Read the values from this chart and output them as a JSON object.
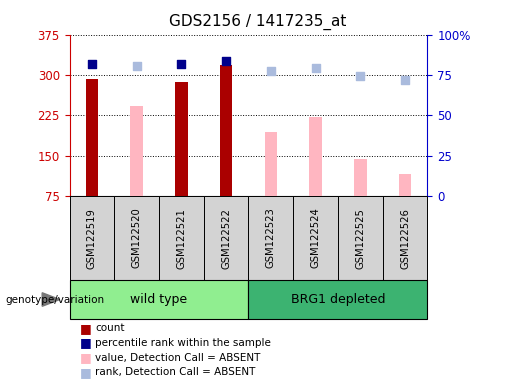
{
  "title": "GDS2156 / 1417235_at",
  "samples": [
    "GSM122519",
    "GSM122520",
    "GSM122521",
    "GSM122522",
    "GSM122523",
    "GSM122524",
    "GSM122525",
    "GSM122526"
  ],
  "count_values": [
    292,
    null,
    287,
    318,
    null,
    null,
    null,
    null
  ],
  "value_absent": [
    null,
    243,
    null,
    null,
    193,
    222,
    143,
    115
  ],
  "rank_present": [
    320,
    null,
    320,
    325,
    null,
    null,
    null,
    null
  ],
  "rank_absent": [
    null,
    316,
    null,
    null,
    308,
    312,
    298,
    291
  ],
  "ylim_left": [
    75,
    375
  ],
  "ylim_right": [
    0,
    100
  ],
  "yticks_left": [
    75,
    150,
    225,
    300,
    375
  ],
  "yticks_right": [
    0,
    25,
    50,
    75,
    100
  ],
  "ylabel_left_color": "#CC0000",
  "ylabel_right_color": "#0000CC",
  "count_color": "#AA0000",
  "rank_present_color": "#00008B",
  "value_absent_color": "#FFB6C1",
  "rank_absent_color": "#AABBDD",
  "wild_type_color": "#90EE90",
  "brg1_color": "#3CB371",
  "legend_items": [
    "count",
    "percentile rank within the sample",
    "value, Detection Call = ABSENT",
    "rank, Detection Call = ABSENT"
  ],
  "legend_colors": [
    "#AA0000",
    "#00008B",
    "#FFB6C1",
    "#AABBDD"
  ],
  "genotype_label": "genotype/variation"
}
